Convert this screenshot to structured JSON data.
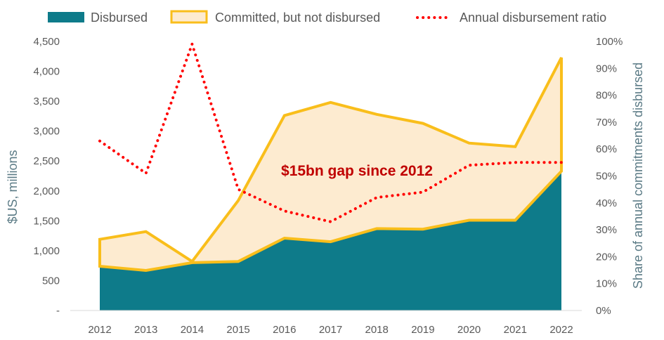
{
  "chart_data": {
    "type": "area",
    "categories": [
      "2012",
      "2013",
      "2014",
      "2015",
      "2016",
      "2017",
      "2018",
      "2019",
      "2020",
      "2021",
      "2022"
    ],
    "series": [
      {
        "name": "Disbursed",
        "axis": "left",
        "values": [
          740,
          670,
          800,
          820,
          1210,
          1150,
          1370,
          1360,
          1510,
          1510,
          2330
        ],
        "color": "#0e7b8a"
      },
      {
        "name": "Committed, but not disbursed",
        "axis": "left",
        "total_committed": [
          1190,
          1320,
          820,
          1840,
          3260,
          3480,
          3280,
          3130,
          2800,
          2740,
          4230
        ],
        "fill": "#fdebd0",
        "stroke": "#f9be1b"
      },
      {
        "name": "Annual disbursement ratio",
        "axis": "right",
        "values": [
          63,
          51,
          99,
          45,
          37,
          33,
          42,
          44,
          54,
          55,
          55
        ],
        "color": "#ff0000"
      }
    ],
    "ylim_left": [
      0,
      4500
    ],
    "ylim_right": [
      0,
      100
    ],
    "left_ticks": [
      "-",
      "500",
      "1,000",
      "1,500",
      "2,000",
      "2,500",
      "3,000",
      "3,500",
      "4,000",
      "4,500"
    ],
    "right_ticks": [
      "0%",
      "10%",
      "20%",
      "30%",
      "40%",
      "50%",
      "60%",
      "70%",
      "80%",
      "90%",
      "100%"
    ],
    "ylabel": "$US, millions",
    "ylabel_right": "Share of  annual commitments disbursed",
    "annotation": "$15bn gap since 2012",
    "legend_position": "top",
    "grid": false
  }
}
